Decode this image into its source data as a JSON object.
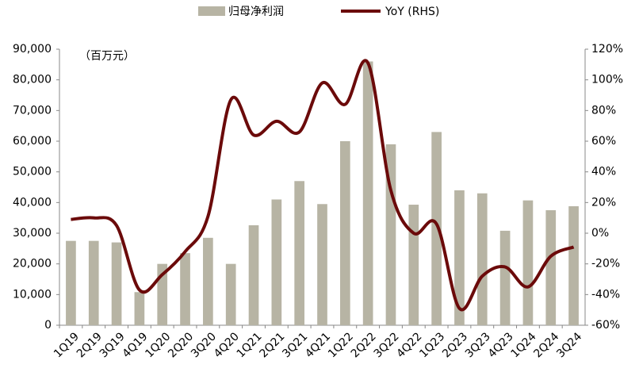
{
  "chart_data": {
    "type": "bar-line",
    "unit_label": "（百万元）",
    "categories": [
      "1Q19",
      "2Q19",
      "3Q19",
      "4Q19",
      "1Q20",
      "2Q20",
      "3Q20",
      "4Q20",
      "1Q21",
      "2Q21",
      "3Q21",
      "4Q21",
      "1Q22",
      "2Q22",
      "3Q22",
      "4Q22",
      "1Q23",
      "2Q23",
      "3Q23",
      "4Q23",
      "1Q24",
      "2Q24",
      "3Q24"
    ],
    "series": [
      {
        "name": "归母净利润",
        "type": "bar",
        "color": "#b7b4a4",
        "values": [
          27500,
          27500,
          27000,
          10800,
          20000,
          23500,
          28500,
          20000,
          32600,
          41000,
          47000,
          39500,
          60000,
          86000,
          59000,
          39300,
          63000,
          44000,
          43000,
          30800,
          40700,
          37500,
          38800
        ]
      },
      {
        "name": "YoY (RHS)",
        "type": "line",
        "axis": "y2",
        "color": "#6b0a0a",
        "values": [
          9,
          10,
          5,
          -37,
          -27,
          -12,
          11,
          87,
          64,
          73,
          66,
          98,
          84,
          111,
          28,
          0,
          6,
          -49,
          -28,
          -22,
          -35,
          -15,
          -9
        ]
      }
    ],
    "ylim": [
      0,
      90000
    ],
    "yticks": [
      0,
      {
        "value": 10000,
        "label": "10,000"
      },
      {
        "value": 20000,
        "label": "20,000"
      },
      {
        "value": 30000,
        "label": "30,000"
      },
      {
        "value": 40000,
        "label": "40,000"
      },
      {
        "value": 50000,
        "label": "50,000"
      },
      {
        "value": 60000,
        "label": "60,000"
      },
      {
        "value": 70000,
        "label": "70,000"
      },
      {
        "value": 80000,
        "label": "80,000"
      },
      {
        "value": 90000,
        "label": "90,000"
      }
    ],
    "y2lim": [
      -60,
      120
    ],
    "y2ticks": [
      {
        "value": -60,
        "label": "-60%"
      },
      {
        "value": -40,
        "label": "-40%"
      },
      {
        "value": -20,
        "label": "-20%"
      },
      {
        "value": 0,
        "label": "0%"
      },
      {
        "value": 20,
        "label": "20%"
      },
      {
        "value": 40,
        "label": "40%"
      },
      {
        "value": 60,
        "label": "60%"
      },
      {
        "value": 80,
        "label": "80%"
      },
      {
        "value": 100,
        "label": "100%"
      },
      {
        "value": 120,
        "label": "120%"
      }
    ],
    "grid": false
  }
}
